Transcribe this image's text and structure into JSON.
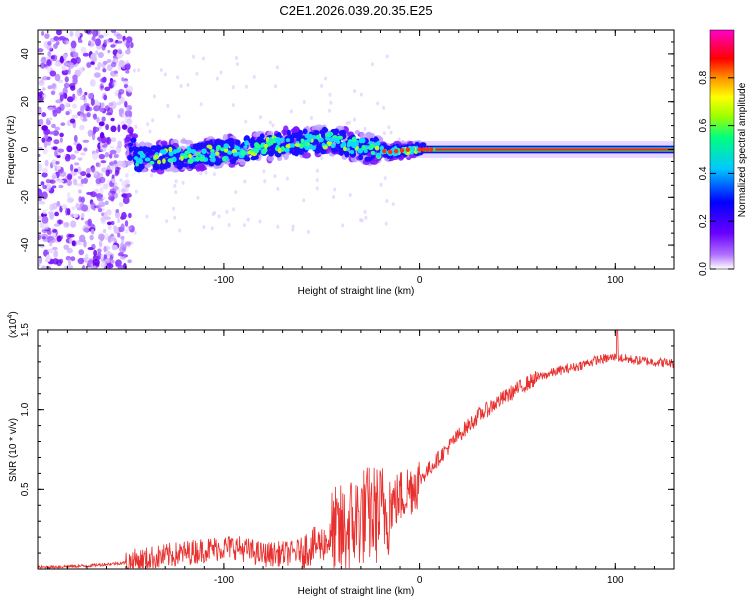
{
  "chart_data": [
    {
      "type": "heatmap",
      "title": "C2E1.2026.039.20.35.E25",
      "xlabel": "Height of straight line (km)",
      "ylabel": "Frequency (Hz)",
      "xlim": [
        -195,
        130
      ],
      "ylim": [
        -50,
        50
      ],
      "xticks": [
        -100,
        0,
        100
      ],
      "yticks": [
        -40,
        -20,
        0,
        20,
        40
      ],
      "colorbar": {
        "label": "Normalized spectral amplitude",
        "range": [
          0,
          1
        ],
        "ticks": [
          0.0,
          0.2,
          0.4,
          0.6,
          0.8
        ],
        "tick_labels": [
          "0.0",
          "0.2",
          "0.4",
          "0.6",
          "0.8"
        ],
        "colormap": [
          "#ffffff",
          "#7f00ff",
          "#0000ff",
          "#00c0ff",
          "#00ff80",
          "#a0ff00",
          "#ffff00",
          "#ff8000",
          "#ff0000",
          "#ff00c0"
        ]
      },
      "ridge": {
        "description_points_km_hz": [
          [
            -145,
            -4
          ],
          [
            -130,
            -3
          ],
          [
            -110,
            -2
          ],
          [
            -90,
            0
          ],
          [
            -75,
            2
          ],
          [
            -60,
            3
          ],
          [
            -45,
            4
          ],
          [
            -35,
            2
          ],
          [
            -25,
            0
          ],
          [
            -15,
            -1
          ],
          [
            -5,
            0
          ],
          [
            0,
            0
          ],
          [
            10,
            0
          ],
          [
            50,
            0
          ],
          [
            100,
            0
          ],
          [
            130,
            0
          ]
        ]
      }
    },
    {
      "type": "line",
      "xlabel": "Height of straight line (km)",
      "ylabel": "SNR (10 * v/v)",
      "y_multiplier": "(x10",
      "y_multiplier_exp": "4",
      "y_multiplier_close": ")",
      "xlim": [
        -195,
        130
      ],
      "ylim": [
        0,
        1.5
      ],
      "xticks": [
        -100,
        0,
        100
      ],
      "yticks": [
        0.5,
        1.0,
        1.5
      ],
      "ytick_labels": [
        "0.5",
        "1.0",
        "1.5"
      ],
      "series": [
        {
          "name": "SNR",
          "color": "#e8302e",
          "x": [
            -195,
            -170,
            -150,
            -130,
            -110,
            -95,
            -80,
            -65,
            -50,
            -40,
            -30,
            -20,
            -10,
            0,
            10,
            20,
            30,
            40,
            50,
            60,
            70,
            80,
            90,
            100,
            110,
            120,
            130
          ],
          "y": [
            0.01,
            0.02,
            0.04,
            0.08,
            0.12,
            0.14,
            0.09,
            0.1,
            0.16,
            0.22,
            0.33,
            0.35,
            0.45,
            0.56,
            0.7,
            0.84,
            0.96,
            1.05,
            1.13,
            1.2,
            1.24,
            1.27,
            1.31,
            1.33,
            1.31,
            1.3,
            1.29
          ]
        }
      ]
    }
  ]
}
